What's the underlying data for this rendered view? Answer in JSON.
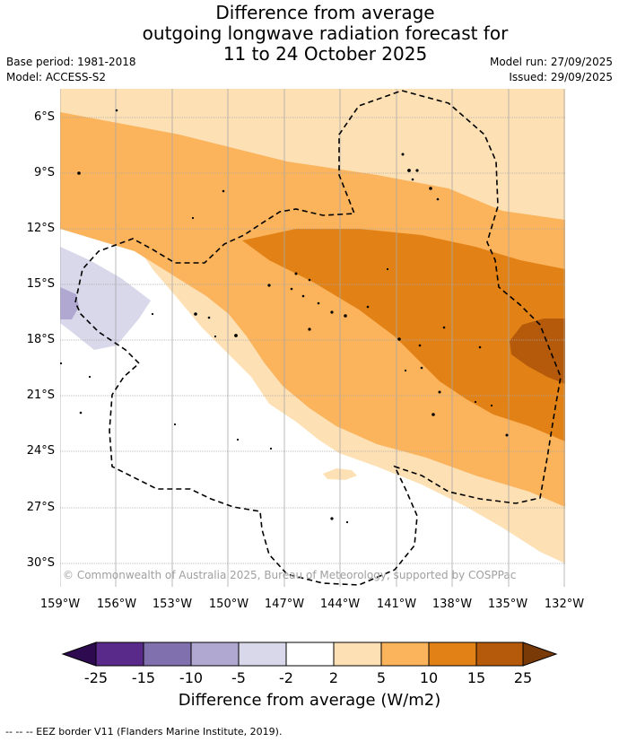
{
  "title": {
    "line1": "Difference from average",
    "line2": "outgoing longwave radiation forecast for",
    "line3": "11 to 24 October 2025"
  },
  "meta": {
    "base_period": "Base period: 1981-2018",
    "model": "Model: ACCESS-S2",
    "model_run": "Model run: 27/09/2025",
    "issued": "Issued: 29/09/2025"
  },
  "axes": {
    "y_labels": [
      "6°S",
      "9°S",
      "12°S",
      "15°S",
      "18°S",
      "21°S",
      "24°S",
      "27°S",
      "30°S"
    ],
    "x_labels": [
      "159°W",
      "156°W",
      "153°W",
      "150°W",
      "147°W",
      "144°W",
      "141°W",
      "138°W",
      "135°W",
      "132°W"
    ]
  },
  "copyright": "© Commonwealth of Australia 2025, Bureau of Meteorology, supported by COSPPac",
  "colorbar": {
    "title": "Difference from average (W/m2)",
    "labels": [
      "-25",
      "-15",
      "-10",
      "-5",
      "-2",
      "2",
      "5",
      "10",
      "15",
      "25"
    ],
    "colors": [
      "#2e0b50",
      "#5a2a8a",
      "#8070ad",
      "#b0a8d0",
      "#d8d8ea",
      "#ffffff",
      "#fde0b4",
      "#fbb35c",
      "#e28216",
      "#b45a0a",
      "#7a3a08"
    ]
  },
  "footer": "--  --  -- EEZ border V11 (Flanders Marine Institute, 2019)."
}
